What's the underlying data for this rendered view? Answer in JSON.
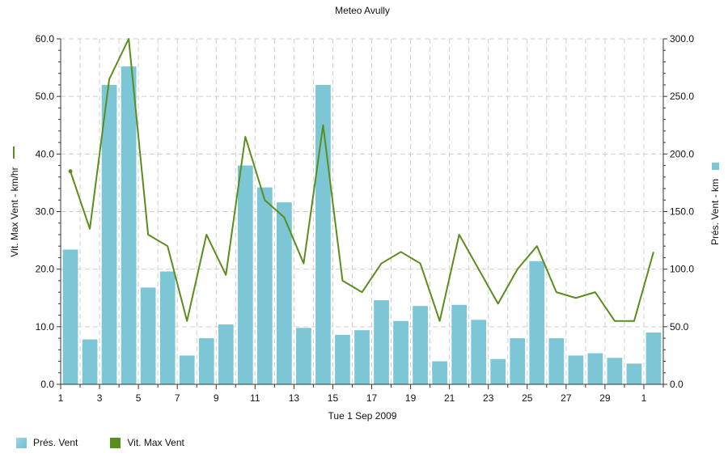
{
  "chart_data": {
    "type": "bar",
    "title": "Meteo  Avully",
    "xlabel": "Tue 1 Sep 2009",
    "ylabel_left": "Vit. Max Vent - km/hr",
    "ylabel_right": "Prés. Vent - km",
    "ylim_left": [
      0,
      60
    ],
    "ylim_right": [
      0,
      300
    ],
    "yticks_left": [
      "0.0",
      "10.0",
      "20.0",
      "30.0",
      "40.0",
      "50.0",
      "60.0"
    ],
    "yticks_right": [
      "0.0",
      "50.0",
      "100.0",
      "150.0",
      "200.0",
      "250.0",
      "300.0"
    ],
    "x_tick_labels": [
      "1",
      "3",
      "5",
      "7",
      "9",
      "11",
      "13",
      "15",
      "17",
      "19",
      "21",
      "23",
      "25",
      "27",
      "29",
      "1"
    ],
    "grid": true,
    "legend_position": "bottom-left",
    "colors": {
      "bar": "#7cc6d6",
      "line": "#5a8e1c"
    },
    "categories": [
      "1",
      "2",
      "3",
      "4",
      "5",
      "6",
      "7",
      "8",
      "9",
      "10",
      "11",
      "12",
      "13",
      "14",
      "15",
      "16",
      "17",
      "18",
      "19",
      "20",
      "21",
      "22",
      "23",
      "24",
      "25",
      "26",
      "27",
      "28",
      "29",
      "30",
      "1"
    ],
    "series": [
      {
        "name": "Prés. Vent",
        "axis": "right",
        "kind": "bar",
        "values": [
          117,
          39,
          260,
          276,
          84,
          98,
          25,
          40,
          52,
          190,
          171,
          158,
          49,
          260,
          43,
          47,
          73,
          55,
          68,
          20,
          69,
          56,
          22,
          40,
          107,
          40,
          25,
          27,
          23,
          18,
          45
        ]
      },
      {
        "name": "Vit. Max Vent",
        "axis": "left",
        "kind": "line",
        "values": [
          37,
          27,
          53,
          60,
          26,
          24,
          11,
          26,
          19,
          43,
          32,
          29,
          21,
          45,
          18,
          16,
          21,
          23,
          21,
          11,
          26,
          20,
          14,
          20,
          24,
          16,
          15,
          16,
          11,
          11,
          23
        ]
      }
    ]
  }
}
